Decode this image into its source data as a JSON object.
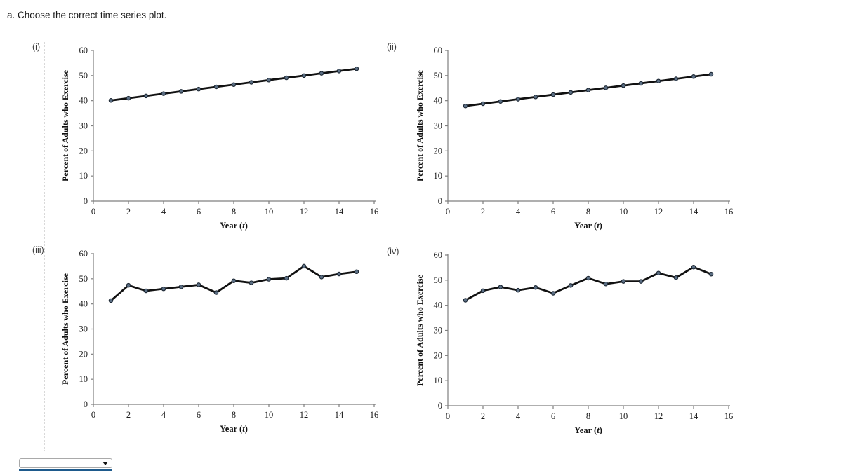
{
  "page": {
    "title": "a. Choose the correct time series plot."
  },
  "answer_dropdown": {
    "value": "",
    "icon": "dropdown-arrow-icon"
  },
  "colors": {
    "line": "#111111",
    "marker_fill": "#5b6e83",
    "marker_stroke": "#1c2733",
    "axis": "#7f7f7f",
    "tick_text": "#1a1a1a",
    "dropdown_underline": "#1e5a8c"
  },
  "chart_data": [
    {
      "id": "i",
      "label": "(i)",
      "type": "line",
      "x": [
        1,
        2,
        3,
        4,
        5,
        6,
        7,
        8,
        9,
        10,
        11,
        12,
        13,
        14,
        15
      ],
      "values": [
        40.1,
        41.0,
        41.9,
        42.8,
        43.7,
        44.6,
        45.5,
        46.4,
        47.3,
        48.2,
        49.1,
        50.0,
        50.9,
        51.8,
        52.7
      ],
      "title": "",
      "xlabel": "Year (t)",
      "ylabel": "Percent of Adults who Exercise",
      "xlim": [
        0,
        16
      ],
      "ylim": [
        0,
        60
      ],
      "xticks": [
        0,
        2,
        4,
        6,
        8,
        10,
        12,
        14,
        16
      ],
      "yticks": [
        0,
        10,
        20,
        30,
        40,
        50,
        60
      ],
      "grid": false,
      "legend": "none",
      "shape": "straight trend line with markers"
    },
    {
      "id": "ii",
      "label": "(ii)",
      "type": "line",
      "x": [
        1,
        2,
        3,
        4,
        5,
        6,
        7,
        8,
        9,
        10,
        11,
        12,
        13,
        14,
        15
      ],
      "values": [
        37.9,
        38.8,
        39.7,
        40.6,
        41.5,
        42.4,
        43.3,
        44.2,
        45.1,
        46.0,
        46.9,
        47.8,
        48.7,
        49.6,
        50.5
      ],
      "title": "",
      "xlabel": "Year (t)",
      "ylabel": "Percent of Adults who Exercise",
      "xlim": [
        0,
        16
      ],
      "ylim": [
        0,
        60
      ],
      "xticks": [
        0,
        2,
        4,
        6,
        8,
        10,
        12,
        14,
        16
      ],
      "yticks": [
        0,
        10,
        20,
        30,
        40,
        50,
        60
      ],
      "grid": false,
      "legend": "none",
      "shape": "straight trend line with markers"
    },
    {
      "id": "iii",
      "label": "(iii)",
      "type": "line",
      "x": [
        1,
        2,
        3,
        4,
        5,
        6,
        7,
        8,
        9,
        10,
        11,
        12,
        13,
        14,
        15
      ],
      "values": [
        41.3,
        47.4,
        45.2,
        46.0,
        46.8,
        47.6,
        44.5,
        49.2,
        48.4,
        49.8,
        50.2,
        55.0,
        50.7,
        51.9,
        52.8
      ],
      "title": "",
      "xlabel": "Year (t)",
      "ylabel": "Percent of Adults who Exercise",
      "xlim": [
        0,
        16
      ],
      "ylim": [
        0,
        60
      ],
      "xticks": [
        0,
        2,
        4,
        6,
        8,
        10,
        12,
        14,
        16
      ],
      "yticks": [
        0,
        10,
        20,
        30,
        40,
        50,
        60
      ],
      "grid": false,
      "legend": "none",
      "shape": "jagged observed series with markers"
    },
    {
      "id": "iv",
      "label": "(iv)",
      "type": "line",
      "x": [
        1,
        2,
        3,
        4,
        5,
        6,
        7,
        8,
        9,
        10,
        11,
        12,
        13,
        14,
        15
      ],
      "values": [
        42.0,
        45.8,
        47.3,
        46.0,
        47.1,
        44.8,
        47.9,
        50.8,
        48.5,
        49.5,
        49.5,
        52.8,
        51.0,
        55.2,
        52.4
      ],
      "title": "",
      "xlabel": "Year (t)",
      "ylabel": "Percent of Adults who Exercise",
      "xlim": [
        0,
        16
      ],
      "ylim": [
        0,
        60
      ],
      "xticks": [
        0,
        2,
        4,
        6,
        8,
        10,
        12,
        14,
        16
      ],
      "yticks": [
        0,
        10,
        20,
        30,
        40,
        50,
        60
      ],
      "grid": false,
      "legend": "none",
      "shape": "jagged observed series with markers"
    }
  ]
}
